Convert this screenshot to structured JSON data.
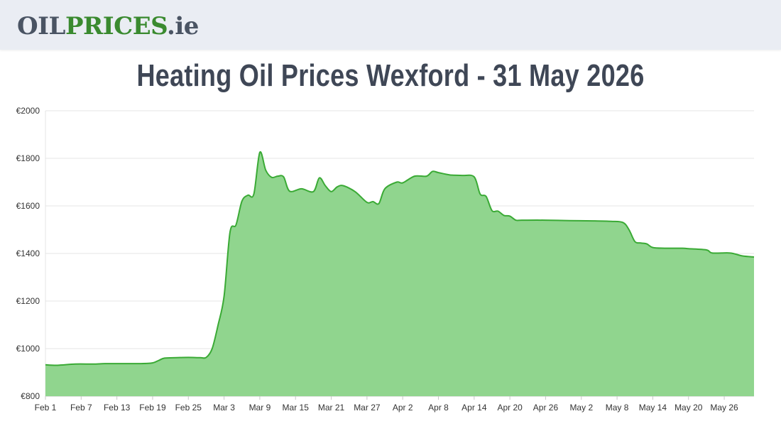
{
  "header": {
    "logo_part1": "OIL",
    "logo_part2": "PRICES",
    "logo_part3": ".ie"
  },
  "page_title": "Heating Oil Prices Wexford - 31 May 2026",
  "chart_data": {
    "type": "area",
    "title": "Heating Oil Prices Wexford - 31 May 2026",
    "xlabel": "",
    "ylabel": "",
    "ylim": [
      800,
      2000
    ],
    "y_ticks": [
      800,
      1000,
      1200,
      1400,
      1600,
      1800,
      2000
    ],
    "y_tick_labels": [
      "€800",
      "€1000",
      "€1200",
      "€1400",
      "€1600",
      "€1800",
      "€2000"
    ],
    "x_tick_labels": [
      "Feb 1",
      "Feb 7",
      "Feb 13",
      "Feb 19",
      "Feb 25",
      "Mar 3",
      "Mar 9",
      "Mar 15",
      "Mar 21",
      "Mar 27",
      "Apr 2",
      "Apr 8",
      "Apr 14",
      "Apr 20",
      "Apr 26",
      "May 2",
      "May 8",
      "May 14",
      "May 20",
      "May 26"
    ],
    "x_start": "2026-02-01",
    "x_end": "2026-05-31",
    "grid": true,
    "fill_color": "#90d58e",
    "line_color": "#3aaa35",
    "series": [
      {
        "name": "",
        "points": [
          [
            "2026-02-01",
            932
          ],
          [
            "2026-02-03",
            930
          ],
          [
            "2026-02-06",
            935
          ],
          [
            "2026-02-09",
            935
          ],
          [
            "2026-02-11",
            937
          ],
          [
            "2026-02-14",
            937
          ],
          [
            "2026-02-17",
            937
          ],
          [
            "2026-02-19",
            940
          ],
          [
            "2026-02-20",
            950
          ],
          [
            "2026-02-21",
            960
          ],
          [
            "2026-02-23",
            962
          ],
          [
            "2026-02-25",
            963
          ],
          [
            "2026-02-27",
            962
          ],
          [
            "2026-02-28",
            963
          ],
          [
            "2026-03-01",
            1000
          ],
          [
            "2026-03-02",
            1100
          ],
          [
            "2026-03-03",
            1220
          ],
          [
            "2026-03-04",
            1490
          ],
          [
            "2026-03-05",
            1520
          ],
          [
            "2026-03-06",
            1620
          ],
          [
            "2026-03-07",
            1645
          ],
          [
            "2026-03-08",
            1650
          ],
          [
            "2026-03-09",
            1825
          ],
          [
            "2026-03-10",
            1750
          ],
          [
            "2026-03-11",
            1720
          ],
          [
            "2026-03-12",
            1725
          ],
          [
            "2026-03-13",
            1722
          ],
          [
            "2026-03-14",
            1662
          ],
          [
            "2026-03-16",
            1672
          ],
          [
            "2026-03-18",
            1660
          ],
          [
            "2026-03-19",
            1718
          ],
          [
            "2026-03-20",
            1685
          ],
          [
            "2026-03-21",
            1660
          ],
          [
            "2026-03-22",
            1680
          ],
          [
            "2026-03-23",
            1685
          ],
          [
            "2026-03-25",
            1660
          ],
          [
            "2026-03-27",
            1615
          ],
          [
            "2026-03-28",
            1618
          ],
          [
            "2026-03-29",
            1610
          ],
          [
            "2026-03-30",
            1672
          ],
          [
            "2026-04-01",
            1700
          ],
          [
            "2026-04-02",
            1697
          ],
          [
            "2026-04-04",
            1725
          ],
          [
            "2026-04-06",
            1725
          ],
          [
            "2026-04-07",
            1745
          ],
          [
            "2026-04-08",
            1740
          ],
          [
            "2026-04-10",
            1730
          ],
          [
            "2026-04-12",
            1728
          ],
          [
            "2026-04-14",
            1722
          ],
          [
            "2026-04-15",
            1650
          ],
          [
            "2026-04-16",
            1640
          ],
          [
            "2026-04-17",
            1580
          ],
          [
            "2026-04-18",
            1578
          ],
          [
            "2026-04-19",
            1560
          ],
          [
            "2026-04-20",
            1557
          ],
          [
            "2026-04-21",
            1540
          ],
          [
            "2026-04-22",
            1540
          ],
          [
            "2026-04-26",
            1540
          ],
          [
            "2026-04-30",
            1538
          ],
          [
            "2026-05-04",
            1537
          ],
          [
            "2026-05-07",
            1535
          ],
          [
            "2026-05-09",
            1530
          ],
          [
            "2026-05-10",
            1500
          ],
          [
            "2026-05-11",
            1450
          ],
          [
            "2026-05-12",
            1444
          ],
          [
            "2026-05-13",
            1440
          ],
          [
            "2026-05-14",
            1425
          ],
          [
            "2026-05-16",
            1422
          ],
          [
            "2026-05-19",
            1422
          ],
          [
            "2026-05-20",
            1420
          ],
          [
            "2026-05-23",
            1415
          ],
          [
            "2026-05-24",
            1402
          ],
          [
            "2026-05-27",
            1402
          ],
          [
            "2026-05-29",
            1390
          ],
          [
            "2026-05-31",
            1385
          ]
        ]
      }
    ]
  }
}
